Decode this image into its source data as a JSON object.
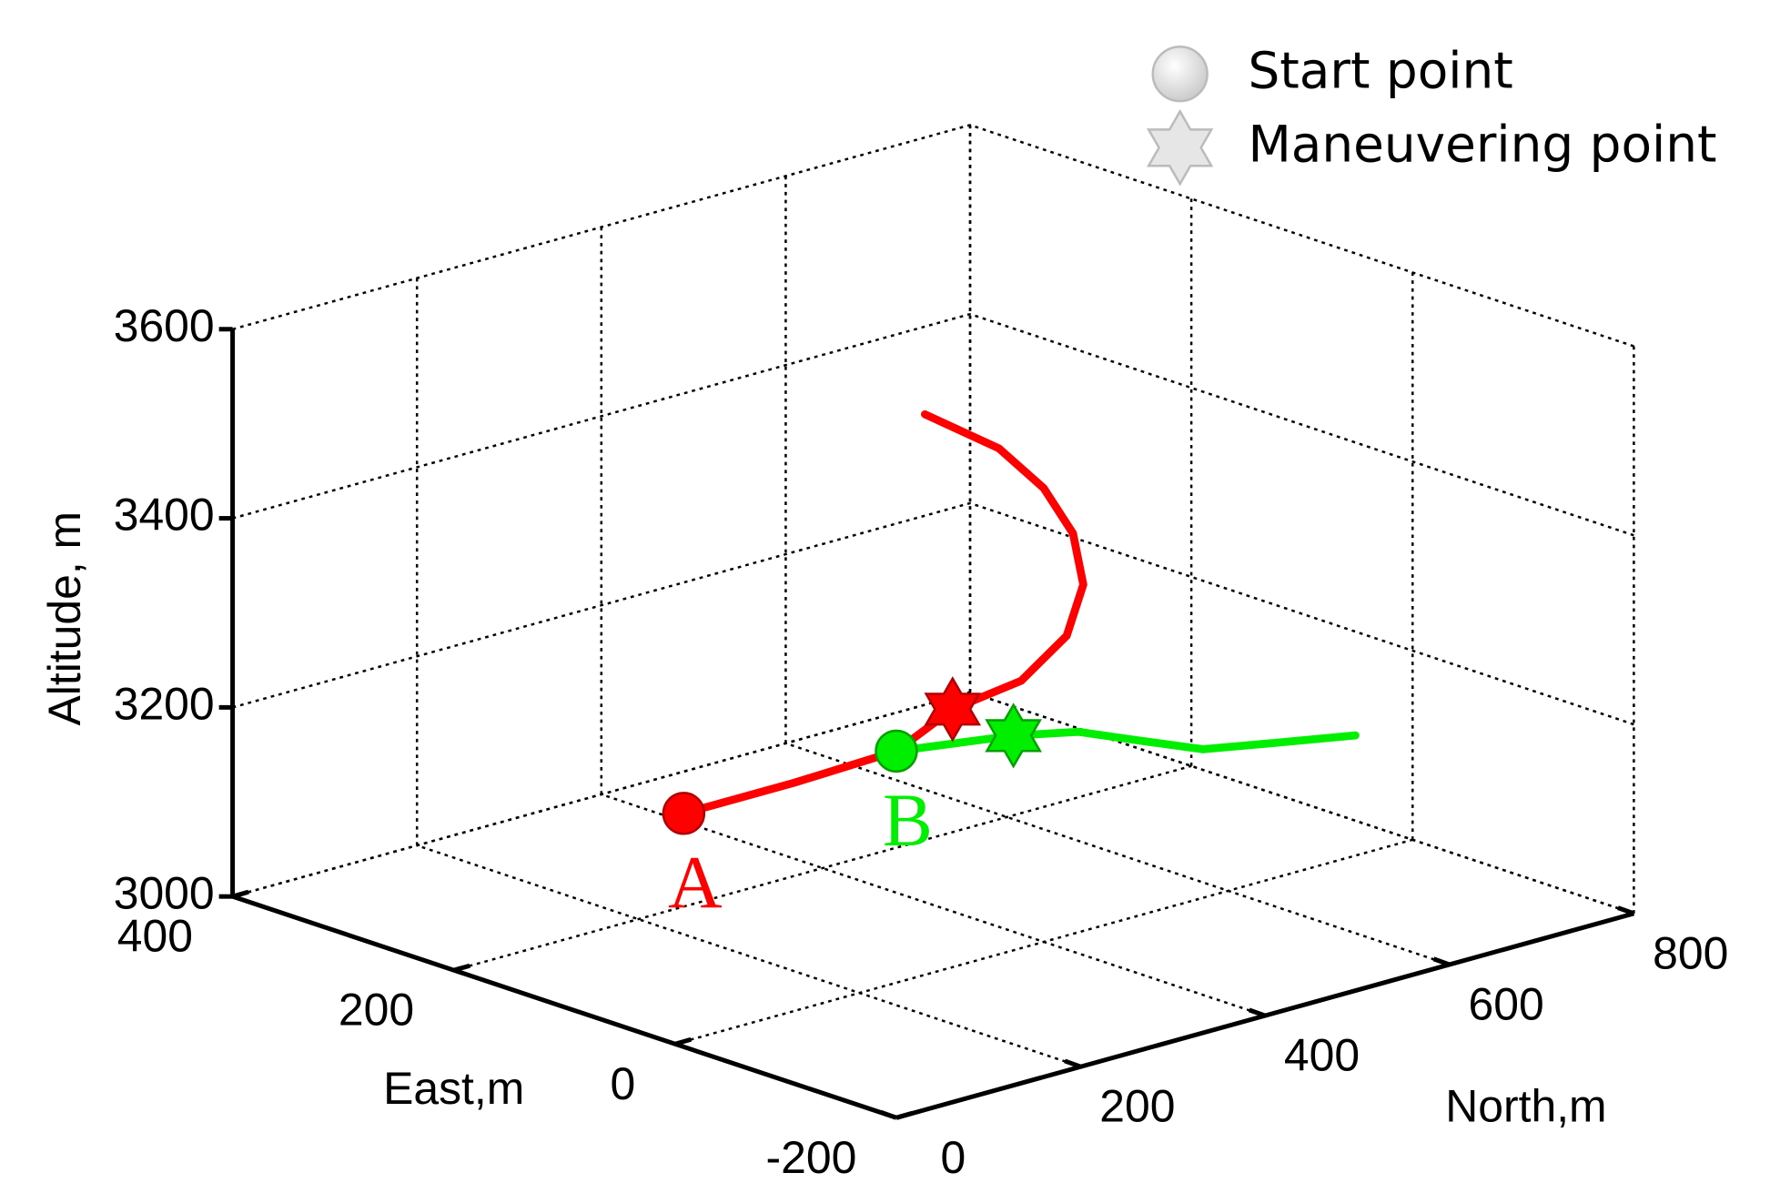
{
  "chart_data": {
    "type": "line3d",
    "xlabel": "North,m",
    "ylabel": "East,m",
    "zlabel": "Altitude, m",
    "xlim": [
      0,
      800
    ],
    "xticks": [
      0,
      200,
      400,
      600,
      800
    ],
    "ylim": [
      -200,
      400
    ],
    "yticks": [
      -200,
      0,
      200,
      400
    ],
    "zlim": [
      3000,
      3600
    ],
    "zticks": [
      3000,
      3200,
      3400,
      3600
    ],
    "grid": true,
    "legend": {
      "position": "upper right",
      "items": [
        {
          "label": "Start point",
          "marker": "circle",
          "color": "#e6e6e6"
        },
        {
          "label": "Maneuvering point",
          "marker": "star",
          "color": "#e6e6e6"
        }
      ]
    },
    "series": [
      {
        "name": "A",
        "color": "#ff0000",
        "north": [
          247,
          350,
          450,
          541,
          565,
          588,
          588,
          572,
          551,
          511,
          427
        ],
        "east": [
          198,
          184,
          175,
          200,
          158,
          136,
          121,
          117,
          126,
          133,
          130
        ],
        "altitude": [
          3100,
          3110,
          3120,
          3130,
          3170,
          3220,
          3280,
          3340,
          3390,
          3440,
          3500
        ],
        "maneuver": {
          "north": 541,
          "east": 200,
          "altitude": 3130
        }
      },
      {
        "name": "B",
        "color": "#00ee00",
        "north": [
          450,
          547,
          592,
          611,
          635,
          686,
          750
        ],
        "east": [
          175,
          150,
          129,
          94,
          52,
          33,
          10
        ],
        "altitude": [
          3120,
          3120,
          3120,
          3120,
          3120,
          3120,
          3120
        ],
        "maneuver": {
          "north": 547,
          "east": 150,
          "altitude": 3120
        }
      }
    ]
  }
}
